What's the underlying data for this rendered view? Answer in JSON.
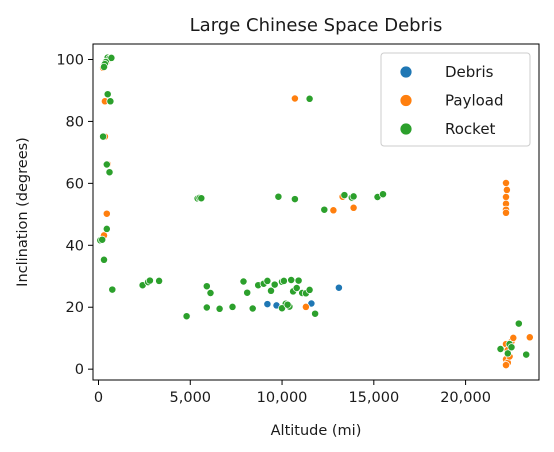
{
  "chart_data": {
    "type": "scatter",
    "title": "Large Chinese Space Debris",
    "xlabel": "Altitude (mi)",
    "ylabel": "Inclination (degrees)",
    "xlim": [
      -300,
      24000
    ],
    "ylim": [
      -3.5,
      105
    ],
    "xticks": [
      0,
      5000,
      10000,
      15000,
      20000
    ],
    "xtick_labels": [
      "0",
      "5,000",
      "10,000",
      "15,000",
      "20,000"
    ],
    "yticks": [
      0,
      20,
      40,
      60,
      80,
      100
    ],
    "ytick_labels": [
      "0",
      "20",
      "40",
      "60",
      "80",
      "100"
    ],
    "grid": false,
    "legend_position": "top-right",
    "series": [
      {
        "name": "Debris",
        "color": "#1f77b4",
        "points": [
          [
            9200,
            21
          ],
          [
            9700,
            20.6
          ],
          [
            13100,
            26.3
          ],
          [
            11600,
            21.2
          ]
        ]
      },
      {
        "name": "Payload",
        "color": "#ff7f0e",
        "points": [
          [
            250,
            97.3
          ],
          [
            300,
            98.2
          ],
          [
            350,
            97.8
          ],
          [
            400,
            98.8
          ],
          [
            500,
            99.5
          ],
          [
            600,
            100.2
          ],
          [
            700,
            100.4
          ],
          [
            350,
            86.5
          ],
          [
            650,
            86.5
          ],
          [
            250,
            75.1
          ],
          [
            350,
            75.1
          ],
          [
            500,
            66.2
          ],
          [
            450,
            50.2
          ],
          [
            250,
            42.7
          ],
          [
            150,
            41.7
          ],
          [
            300,
            43.2
          ],
          [
            10700,
            87.4
          ],
          [
            11300,
            20.1
          ],
          [
            12800,
            51.3
          ],
          [
            13300,
            55.7
          ],
          [
            13800,
            55.2
          ],
          [
            13900,
            52.1
          ],
          [
            22200,
            60.1
          ],
          [
            22250,
            57.9
          ],
          [
            22200,
            55.6
          ],
          [
            22200,
            53.4
          ],
          [
            22200,
            51.5
          ],
          [
            22200,
            50.5
          ],
          [
            22200,
            8.1
          ],
          [
            22300,
            6.2
          ],
          [
            22200,
            3.2
          ],
          [
            22300,
            2.1
          ],
          [
            22500,
            8.9
          ],
          [
            22600,
            10.1
          ],
          [
            22400,
            4.1
          ],
          [
            22200,
            1.3
          ],
          [
            23500,
            10.3
          ]
        ]
      },
      {
        "name": "Rocket",
        "color": "#2ca02c",
        "points": [
          [
            500,
            100.6
          ],
          [
            600,
            100.3
          ],
          [
            700,
            100.5
          ],
          [
            400,
            99.2
          ],
          [
            350,
            98.5
          ],
          [
            300,
            97.6
          ],
          [
            500,
            88.8
          ],
          [
            650,
            86.5
          ],
          [
            250,
            75.1
          ],
          [
            450,
            66.1
          ],
          [
            600,
            63.6
          ],
          [
            450,
            45.3
          ],
          [
            100,
            41.6
          ],
          [
            200,
            41.8
          ],
          [
            300,
            35.3
          ],
          [
            750,
            25.7
          ],
          [
            2400,
            27.1
          ],
          [
            2700,
            28.1
          ],
          [
            2800,
            28.6
          ],
          [
            3300,
            28.5
          ],
          [
            4800,
            17.1
          ],
          [
            5400,
            55.1
          ],
          [
            5500,
            55.3
          ],
          [
            5600,
            55.2
          ],
          [
            5900,
            19.9
          ],
          [
            5900,
            26.8
          ],
          [
            6100,
            24.6
          ],
          [
            6600,
            19.5
          ],
          [
            7300,
            20.1
          ],
          [
            7900,
            28.3
          ],
          [
            8100,
            24.7
          ],
          [
            8400,
            19.6
          ],
          [
            8700,
            27.1
          ],
          [
            9000,
            27.6
          ],
          [
            9200,
            28.5
          ],
          [
            9400,
            25.3
          ],
          [
            9600,
            27.3
          ],
          [
            9800,
            55.7
          ],
          [
            10000,
            28.2
          ],
          [
            10100,
            28.5
          ],
          [
            10200,
            21.1
          ],
          [
            10400,
            20.2
          ],
          [
            10500,
            28.8
          ],
          [
            10600,
            25.1
          ],
          [
            10700,
            54.9
          ],
          [
            10800,
            26.2
          ],
          [
            10900,
            28.6
          ],
          [
            11100,
            24.6
          ],
          [
            11300,
            24.5
          ],
          [
            11500,
            87.3
          ],
          [
            11500,
            25.6
          ],
          [
            11800,
            17.9
          ],
          [
            12300,
            51.5
          ],
          [
            13400,
            56.2
          ],
          [
            13800,
            55.4
          ],
          [
            13900,
            55.8
          ],
          [
            15200,
            55.6
          ],
          [
            15500,
            56.5
          ],
          [
            10000,
            19.7
          ],
          [
            10300,
            20.8
          ],
          [
            21900,
            6.5
          ],
          [
            22300,
            5.1
          ],
          [
            22400,
            8.1
          ],
          [
            22500,
            7.1
          ],
          [
            22900,
            14.7
          ],
          [
            23300,
            4.7
          ]
        ]
      }
    ]
  }
}
